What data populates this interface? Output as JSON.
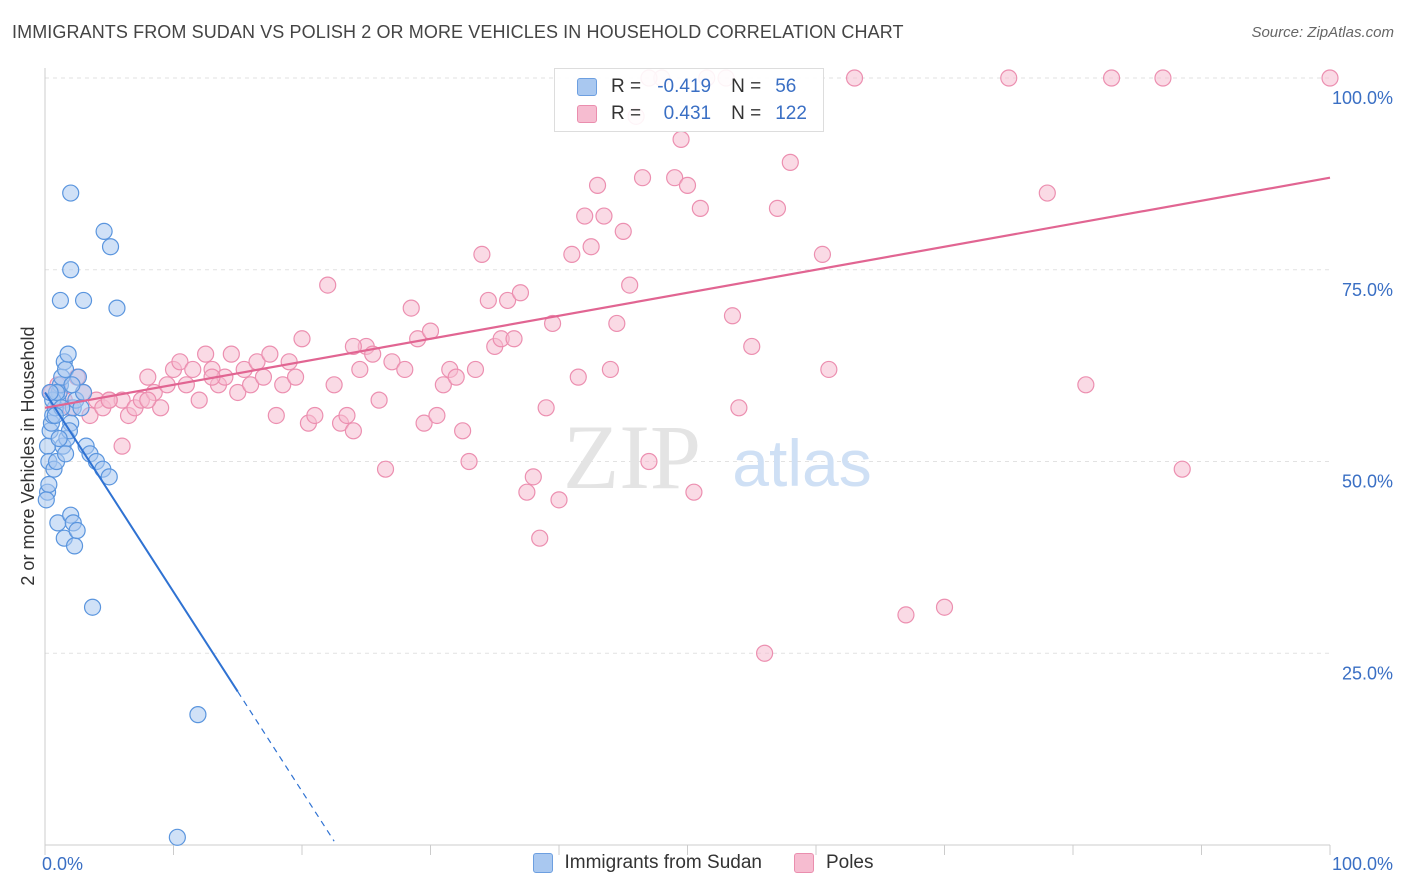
{
  "title": "IMMIGRANTS FROM SUDAN VS POLISH 2 OR MORE VEHICLES IN HOUSEHOLD CORRELATION CHART",
  "source": "Source: ZipAtlas.com",
  "watermark": {
    "zip": "ZIP",
    "atlas": "atlas"
  },
  "legend": {
    "r_label": "R =",
    "n_label": "N =",
    "series": [
      {
        "r": "-0.419",
        "n": "56",
        "fill": "#a9c8f0",
        "stroke": "#6d9fe0"
      },
      {
        "r": "0.431",
        "n": "122",
        "fill": "#f6bcd0",
        "stroke": "#ea8eae"
      }
    ]
  },
  "bottom_legend": [
    "Immigrants from Sudan",
    "Poles"
  ],
  "chart_data": {
    "type": "scatter",
    "xlabel": "",
    "ylabel": "2 or more Vehicles in Household",
    "xlim": [
      0,
      100
    ],
    "ylim": [
      0,
      100
    ],
    "x_tick_labels": [
      {
        "value": 0,
        "label": "0.0%"
      },
      {
        "value": 100,
        "label": "100.0%"
      }
    ],
    "y_tick_labels": [
      {
        "value": 100,
        "label": "100.0%"
      },
      {
        "value": 75,
        "label": "75.0%"
      },
      {
        "value": 50,
        "label": "50.0%"
      },
      {
        "value": 25,
        "label": "25.0%"
      }
    ],
    "grid": true,
    "colors": {
      "sudan": "#5a95de",
      "poles": "#ec8fb0",
      "sudan_line": "#2f72d2",
      "poles_line": "#e16592",
      "axis_label": "#3a6fc4"
    },
    "series": [
      {
        "name": "Immigrants from Sudan",
        "color": "#5a95de",
        "trend": {
          "x0": 0,
          "y0": 59,
          "x1": 15,
          "y1": 20,
          "dash_to_x": 22.5,
          "dash_to_y": 0.5
        },
        "points": [
          [
            0.2,
            52
          ],
          [
            0.3,
            50
          ],
          [
            0.4,
            54
          ],
          [
            0.5,
            55
          ],
          [
            0.6,
            56
          ],
          [
            0.2,
            46
          ],
          [
            0.3,
            47
          ],
          [
            0.8,
            57
          ],
          [
            1.0,
            58
          ],
          [
            1.1,
            59
          ],
          [
            1.2,
            60
          ],
          [
            1.3,
            61
          ],
          [
            1.5,
            63
          ],
          [
            1.6,
            62
          ],
          [
            1.8,
            64
          ],
          [
            0.7,
            49
          ],
          [
            0.9,
            50
          ],
          [
            1.4,
            52
          ],
          [
            1.7,
            53
          ],
          [
            2.0,
            55
          ],
          [
            2.2,
            57
          ],
          [
            2.4,
            58
          ],
          [
            2.6,
            61
          ],
          [
            3.0,
            59
          ],
          [
            3.2,
            52
          ],
          [
            3.5,
            51
          ],
          [
            4.0,
            50
          ],
          [
            4.5,
            49
          ],
          [
            5.0,
            48
          ],
          [
            1.0,
            42
          ],
          [
            1.5,
            40
          ],
          [
            2.0,
            43
          ],
          [
            2.2,
            42
          ],
          [
            2.3,
            39
          ],
          [
            2.5,
            41
          ],
          [
            1.2,
            71
          ],
          [
            3.0,
            71
          ],
          [
            2.0,
            75
          ],
          [
            2.0,
            85
          ],
          [
            4.6,
            80
          ],
          [
            5.1,
            78
          ],
          [
            5.6,
            70
          ],
          [
            3.7,
            31
          ],
          [
            11.9,
            17
          ],
          [
            10.3,
            1
          ],
          [
            0.1,
            45
          ],
          [
            0.6,
            58
          ],
          [
            0.9,
            59
          ],
          [
            1.3,
            57
          ],
          [
            1.9,
            54
          ],
          [
            2.8,
            57
          ],
          [
            1.1,
            53
          ],
          [
            1.6,
            51
          ],
          [
            2.1,
            60
          ],
          [
            0.4,
            59
          ],
          [
            0.8,
            56
          ]
        ]
      },
      {
        "name": "Poles",
        "color": "#ec8fb0",
        "trend": {
          "x0": 0,
          "y0": 57,
          "x1": 100,
          "y1": 87
        },
        "points": [
          [
            0.5,
            59
          ],
          [
            1.0,
            60
          ],
          [
            1.5,
            58
          ],
          [
            2.0,
            57
          ],
          [
            2.5,
            61
          ],
          [
            3.0,
            59
          ],
          [
            3.5,
            56
          ],
          [
            4.0,
            58
          ],
          [
            4.5,
            57
          ],
          [
            5.0,
            58
          ],
          [
            6.0,
            58
          ],
          [
            6.5,
            56
          ],
          [
            7.0,
            57
          ],
          [
            7.5,
            58
          ],
          [
            8.0,
            61
          ],
          [
            8.5,
            59
          ],
          [
            9.0,
            57
          ],
          [
            9.5,
            60
          ],
          [
            10.0,
            62
          ],
          [
            10.5,
            63
          ],
          [
            11.0,
            60
          ],
          [
            11.5,
            62
          ],
          [
            12.0,
            58
          ],
          [
            12.5,
            64
          ],
          [
            13.0,
            62
          ],
          [
            13.5,
            60
          ],
          [
            14.0,
            61
          ],
          [
            14.5,
            64
          ],
          [
            15.0,
            59
          ],
          [
            15.5,
            62
          ],
          [
            16.0,
            60
          ],
          [
            16.5,
            63
          ],
          [
            17.0,
            61
          ],
          [
            17.5,
            64
          ],
          [
            18.0,
            56
          ],
          [
            18.5,
            60
          ],
          [
            19.0,
            63
          ],
          [
            19.5,
            61
          ],
          [
            20.0,
            66
          ],
          [
            20.5,
            55
          ],
          [
            21.0,
            56
          ],
          [
            22.0,
            73
          ],
          [
            22.5,
            60
          ],
          [
            23.0,
            55
          ],
          [
            23.5,
            56
          ],
          [
            24.0,
            54
          ],
          [
            24.5,
            62
          ],
          [
            25.0,
            65
          ],
          [
            25.5,
            64
          ],
          [
            26.0,
            58
          ],
          [
            26.5,
            49
          ],
          [
            27.0,
            63
          ],
          [
            28.0,
            62
          ],
          [
            28.5,
            70
          ],
          [
            29.0,
            66
          ],
          [
            29.5,
            55
          ],
          [
            30.0,
            67
          ],
          [
            30.5,
            56
          ],
          [
            31.0,
            60
          ],
          [
            31.5,
            62
          ],
          [
            32.0,
            61
          ],
          [
            32.5,
            54
          ],
          [
            33.0,
            50
          ],
          [
            33.5,
            62
          ],
          [
            34.0,
            77
          ],
          [
            34.5,
            71
          ],
          [
            35.0,
            65
          ],
          [
            35.5,
            66
          ],
          [
            36.0,
            71
          ],
          [
            36.5,
            66
          ],
          [
            37.0,
            72
          ],
          [
            37.5,
            46
          ],
          [
            38.0,
            48
          ],
          [
            38.5,
            40
          ],
          [
            39.0,
            57
          ],
          [
            39.5,
            68
          ],
          [
            40.0,
            45
          ],
          [
            41.0,
            77
          ],
          [
            41.5,
            61
          ],
          [
            42.0,
            82
          ],
          [
            42.5,
            78
          ],
          [
            43.0,
            86
          ],
          [
            43.5,
            82
          ],
          [
            44.0,
            62
          ],
          [
            44.5,
            68
          ],
          [
            45.0,
            80
          ],
          [
            45.5,
            73
          ],
          [
            46.0,
            95
          ],
          [
            46.5,
            87
          ],
          [
            47.0,
            50
          ],
          [
            48.0,
            100
          ],
          [
            49.0,
            87
          ],
          [
            49.5,
            92
          ],
          [
            50.0,
            86
          ],
          [
            50.5,
            46
          ],
          [
            51.0,
            83
          ],
          [
            53.0,
            100
          ],
          [
            53.5,
            69
          ],
          [
            54.0,
            57
          ],
          [
            55.0,
            65
          ],
          [
            56.0,
            25
          ],
          [
            57.0,
            83
          ],
          [
            58.0,
            89
          ],
          [
            60.5,
            77
          ],
          [
            61.0,
            62
          ],
          [
            63.0,
            100
          ],
          [
            67.0,
            30
          ],
          [
            70.0,
            31
          ],
          [
            75.0,
            100
          ],
          [
            78.0,
            85
          ],
          [
            81.0,
            60
          ],
          [
            83.0,
            100
          ],
          [
            87.0,
            100
          ],
          [
            88.5,
            49
          ],
          [
            100.0,
            100
          ],
          [
            51.5,
            100
          ],
          [
            13.0,
            61
          ],
          [
            24.0,
            65
          ],
          [
            8.0,
            58
          ],
          [
            6.0,
            52
          ],
          [
            5.0,
            58
          ],
          [
            47.0,
            100
          ]
        ]
      }
    ]
  }
}
